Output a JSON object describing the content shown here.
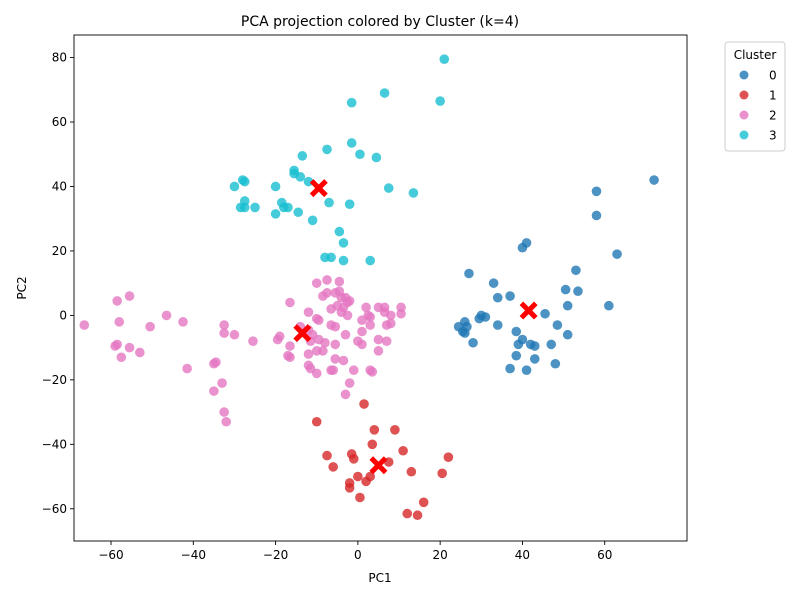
{
  "chart_data": {
    "type": "scatter",
    "title": "PCA projection colored by Cluster (k=4)",
    "xlabel": "PC1",
    "ylabel": "PC2",
    "xlim": [
      -69,
      80
    ],
    "ylim": [
      -70,
      87
    ],
    "x_ticks": [
      -60,
      -40,
      -20,
      0,
      20,
      40,
      60
    ],
    "y_ticks": [
      -60,
      -40,
      -20,
      0,
      20,
      40,
      60,
      80
    ],
    "x_tick_labels": [
      "−60",
      "−40",
      "−20",
      "0",
      "20",
      "40",
      "60"
    ],
    "y_tick_labels": [
      "−60",
      "−40",
      "−20",
      "0",
      "20",
      "40",
      "60",
      "80"
    ],
    "grid": false,
    "legend": {
      "title": "Cluster",
      "placement": "outside-top-right"
    },
    "series": [
      {
        "name": "0",
        "color": "#1f77b4",
        "points": [
          [
            72,
            42
          ],
          [
            58,
            38.5
          ],
          [
            58,
            31
          ],
          [
            63,
            19
          ],
          [
            53,
            14
          ],
          [
            50.5,
            8
          ],
          [
            53.5,
            7.5
          ],
          [
            61,
            3
          ],
          [
            51,
            3
          ],
          [
            45.5,
            0.5
          ],
          [
            48.5,
            -3
          ],
          [
            51,
            -6
          ],
          [
            47,
            -9
          ],
          [
            48,
            -15
          ],
          [
            43,
            -9.5
          ],
          [
            42,
            -9
          ],
          [
            43,
            -13.5
          ],
          [
            38.5,
            -5
          ],
          [
            40,
            -7.5
          ],
          [
            39,
            -9
          ],
          [
            38.5,
            -12.5
          ],
          [
            41,
            -17
          ],
          [
            37,
            -16.5
          ],
          [
            40,
            21
          ],
          [
            41,
            22.5
          ],
          [
            33,
            10
          ],
          [
            37,
            6
          ],
          [
            34,
            5.5
          ],
          [
            27,
            13
          ],
          [
            30,
            0
          ],
          [
            31,
            -0.5
          ],
          [
            29.5,
            -1
          ],
          [
            26,
            -2
          ],
          [
            24.5,
            -3.5
          ],
          [
            26.5,
            -3.5
          ],
          [
            34,
            -3
          ],
          [
            25.5,
            -5
          ],
          [
            26,
            -5.5
          ],
          [
            28,
            -8.5
          ]
        ]
      },
      {
        "name": "1",
        "color": "#d62728",
        "points": [
          [
            1.5,
            -27.5
          ],
          [
            4,
            -35.5
          ],
          [
            9,
            -35.5
          ],
          [
            3.5,
            -40
          ],
          [
            -10,
            -33
          ],
          [
            -7.5,
            -43.5
          ],
          [
            -1.5,
            -43
          ],
          [
            -1,
            -44.5
          ],
          [
            -6,
            -47
          ],
          [
            11,
            -42
          ],
          [
            7.5,
            -45.5
          ],
          [
            22,
            -44
          ],
          [
            13,
            -48.5
          ],
          [
            20.5,
            -49
          ],
          [
            0,
            -50
          ],
          [
            3,
            -50
          ],
          [
            2,
            -51.5
          ],
          [
            -2,
            -52
          ],
          [
            -2,
            -53.5
          ],
          [
            0.5,
            -56.5
          ],
          [
            16,
            -58
          ],
          [
            12,
            -61.5
          ],
          [
            14.5,
            -62
          ]
        ]
      },
      {
        "name": "2",
        "color": "#e377c2",
        "points": [
          [
            -66.5,
            -3
          ],
          [
            -58.5,
            4.5
          ],
          [
            -55.5,
            6
          ],
          [
            -58,
            -2
          ],
          [
            -59,
            -9.5
          ],
          [
            -58.5,
            -9
          ],
          [
            -55.5,
            -10
          ],
          [
            -53,
            -11.5
          ],
          [
            -57.5,
            -13
          ],
          [
            -50.5,
            -3.5
          ],
          [
            -46.5,
            0
          ],
          [
            -42.5,
            -2
          ],
          [
            -41.5,
            -16.5
          ],
          [
            -32.5,
            -3
          ],
          [
            -32.5,
            -5.5
          ],
          [
            -30,
            -6
          ],
          [
            -25.5,
            -8
          ],
          [
            -34.5,
            -14.5
          ],
          [
            -35,
            -15
          ],
          [
            -33,
            -21
          ],
          [
            -35,
            -23.5
          ],
          [
            -32.5,
            -30
          ],
          [
            -32,
            -33
          ],
          [
            -16.5,
            4
          ],
          [
            -19.5,
            -7.5
          ],
          [
            -19,
            -6.5
          ],
          [
            -16.5,
            -9.5
          ],
          [
            -17,
            -12.5
          ],
          [
            -16.5,
            -13
          ],
          [
            -12,
            1
          ],
          [
            -14,
            -3.5
          ],
          [
            -12,
            -4.5
          ],
          [
            -10,
            -1
          ],
          [
            -9.5,
            -1.5
          ],
          [
            -9.5,
            -7.5
          ],
          [
            -11,
            -6
          ],
          [
            -11.5,
            -8
          ],
          [
            -12,
            -12
          ],
          [
            -10,
            -11
          ],
          [
            -8,
            -8.5
          ],
          [
            -8.5,
            -11
          ],
          [
            -12,
            -15.5
          ],
          [
            -11.5,
            -16.5
          ],
          [
            -10,
            -18
          ],
          [
            -10,
            10
          ],
          [
            -7.5,
            11
          ],
          [
            -4.5,
            10.5
          ],
          [
            -8.5,
            6
          ],
          [
            -7.5,
            7
          ],
          [
            -5.5,
            7
          ],
          [
            -4.5,
            7.5
          ],
          [
            -4,
            5.5
          ],
          [
            -3,
            5.5
          ],
          [
            -2.5,
            4
          ],
          [
            -2,
            4.5
          ],
          [
            -5,
            3
          ],
          [
            -3.5,
            2.5
          ],
          [
            -6.5,
            2
          ],
          [
            -4,
            1
          ],
          [
            -2.5,
            0
          ],
          [
            -6.5,
            -3
          ],
          [
            -5.5,
            -3.5
          ],
          [
            -3,
            -6
          ],
          [
            -5.5,
            -9
          ],
          [
            -5.5,
            -13.5
          ],
          [
            -3.5,
            -14
          ],
          [
            -6.5,
            -17
          ],
          [
            -6,
            -17
          ],
          [
            -1,
            -17
          ],
          [
            -2,
            -21
          ],
          [
            -3,
            -24.5
          ],
          [
            0,
            -8
          ],
          [
            1,
            -9
          ],
          [
            1,
            -5
          ],
          [
            3,
            -3
          ],
          [
            1,
            -1.5
          ],
          [
            2.5,
            0
          ],
          [
            3,
            -0.5
          ],
          [
            2,
            2.5
          ],
          [
            5,
            2.5
          ],
          [
            6.5,
            2.5
          ],
          [
            6.5,
            1
          ],
          [
            8,
            0
          ],
          [
            10.5,
            2.5
          ],
          [
            10.5,
            0.5
          ],
          [
            8,
            -2.5
          ],
          [
            7,
            -3
          ],
          [
            7,
            -8
          ],
          [
            5,
            -7.5
          ],
          [
            5,
            -11
          ],
          [
            3.5,
            -17.5
          ],
          [
            3,
            -17
          ]
        ]
      },
      {
        "name": "3",
        "color": "#17becf",
        "points": [
          [
            21,
            79.5
          ],
          [
            6.5,
            69
          ],
          [
            20,
            66.5
          ],
          [
            -1.5,
            66
          ],
          [
            -1.5,
            53.5
          ],
          [
            -7.5,
            51.5
          ],
          [
            -13.5,
            49.5
          ],
          [
            0.5,
            50
          ],
          [
            4.5,
            49
          ],
          [
            -30,
            40
          ],
          [
            -28,
            42
          ],
          [
            -27.5,
            41.5
          ],
          [
            -20,
            40
          ],
          [
            -15.5,
            45
          ],
          [
            -15.5,
            44
          ],
          [
            -14,
            43
          ],
          [
            -12,
            41.5
          ],
          [
            7.5,
            39.5
          ],
          [
            13.5,
            38
          ],
          [
            -28.5,
            33.5
          ],
          [
            -27.5,
            35.5
          ],
          [
            -27.5,
            33.5
          ],
          [
            -25,
            33.5
          ],
          [
            -18.5,
            35
          ],
          [
            -17,
            33.5
          ],
          [
            -18,
            33.5
          ],
          [
            -20,
            31.5
          ],
          [
            -14.5,
            32
          ],
          [
            -11,
            29.5
          ],
          [
            -7,
            35
          ],
          [
            -2,
            34.5
          ],
          [
            -4.5,
            26
          ],
          [
            -3.5,
            22.5
          ],
          [
            -8,
            18
          ],
          [
            -6.5,
            18
          ],
          [
            -3.5,
            17
          ],
          [
            3,
            17
          ]
        ]
      }
    ],
    "centroids": {
      "color": "#ff0000",
      "marker": "X",
      "points": [
        [
          -9.5,
          39.5
        ],
        [
          41.5,
          1.5
        ],
        [
          -13.5,
          -5.5
        ],
        [
          5,
          -46.5
        ]
      ]
    }
  }
}
